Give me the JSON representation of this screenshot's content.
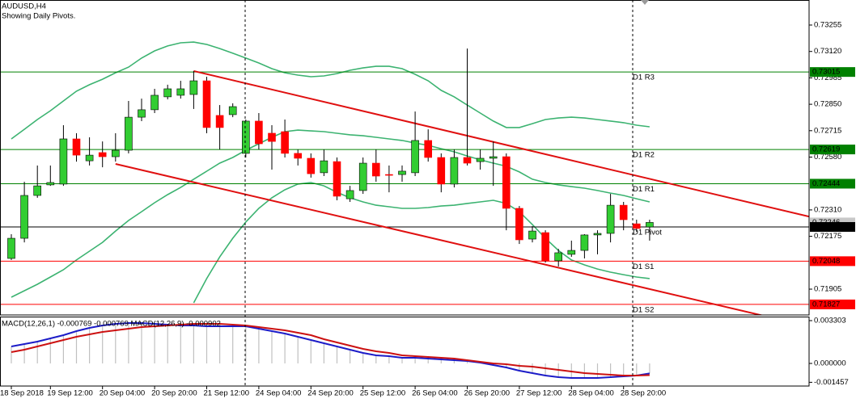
{
  "chart_data": [
    {
      "type": "candlestick",
      "title": "AUDUSD,H4",
      "subtitle": "Showing Daily Pivots.",
      "categories": [
        "18 Sep 2018",
        null,
        null,
        "19 Sep 12:00",
        null,
        null,
        null,
        "20 Sep 04:00",
        null,
        null,
        null,
        "20 Sep 20:00",
        null,
        null,
        null,
        "21 Sep 12:00",
        null,
        null,
        null,
        "24 Sep 04:00",
        null,
        null,
        null,
        "24 Sep 20:00",
        null,
        null,
        null,
        "25 Sep 12:00",
        null,
        null,
        null,
        "26 Sep 04:00",
        null,
        null,
        null,
        "26 Sep 20:00",
        null,
        null,
        null,
        "27 Sep 12:00",
        null,
        null,
        null,
        "28 Sep 04:00",
        null,
        null,
        null,
        "28 Sep 20:00",
        null,
        null
      ],
      "open": [
        0.72062,
        0.72165,
        0.72384,
        0.72438,
        0.72442,
        0.72673,
        0.72561,
        0.72603,
        0.72582,
        0.72615,
        0.72784,
        0.72822,
        0.72888,
        0.72896,
        0.729,
        0.7297,
        0.72793,
        0.72797,
        0.72599,
        0.72764,
        0.72702,
        0.7271,
        0.72599,
        0.72574,
        0.725,
        0.72557,
        0.72367,
        0.72409,
        0.72549,
        0.72491,
        0.72491,
        0.725,
        0.72665,
        0.72578,
        0.72442,
        0.72578,
        0.72557,
        0.72574,
        0.72582,
        0.72318,
        0.72161,
        0.72194,
        0.7205,
        0.72083,
        0.72103,
        0.72182,
        0.7219,
        0.72334,
        0.72239,
        0.72223
      ],
      "high": [
        0.72186,
        0.72454,
        0.72537,
        0.72537,
        0.72743,
        0.72702,
        0.72681,
        0.7266,
        0.72702,
        0.72867,
        0.72879,
        0.72929,
        0.7295,
        0.7297,
        0.7302,
        0.72991,
        0.72846,
        0.72855,
        0.72772,
        0.72805,
        0.72743,
        0.72772,
        0.72619,
        0.72599,
        0.72619,
        0.72578,
        0.72433,
        0.72578,
        0.72619,
        0.72537,
        0.72537,
        0.72813,
        0.72722,
        0.72599,
        0.72619,
        0.73135,
        0.72619,
        0.7266,
        0.72599,
        0.7233,
        0.72227,
        0.72206,
        0.72111,
        0.72153,
        0.72186,
        0.72206,
        0.72392,
        0.72351,
        0.7226,
        0.7226
      ],
      "low": [
        0.72054,
        0.72144,
        0.72372,
        0.72433,
        0.72433,
        0.72557,
        0.72537,
        0.72528,
        0.72557,
        0.72599,
        0.72764,
        0.72805,
        0.72875,
        0.72879,
        0.72826,
        0.72702,
        0.72619,
        0.72784,
        0.72578,
        0.72619,
        0.72516,
        0.72578,
        0.72537,
        0.72475,
        0.72483,
        0.72359,
        0.72351,
        0.72392,
        0.72454,
        0.724,
        0.72454,
        0.72483,
        0.72557,
        0.724,
        0.72425,
        0.72537,
        0.72516,
        0.72433,
        0.72206,
        0.72136,
        0.72144,
        0.72041,
        0.72021,
        0.7207,
        0.72062,
        0.72083,
        0.72144,
        0.72206,
        0.72198,
        0.72153
      ],
      "close": [
        0.72165,
        0.72384,
        0.72433,
        0.7245,
        0.72673,
        0.7259,
        0.7259,
        0.72582,
        0.72615,
        0.72784,
        0.72822,
        0.72896,
        0.72929,
        0.72929,
        0.7297,
        0.72731,
        0.72731,
        0.72838,
        0.72764,
        0.72648,
        0.7266,
        0.72599,
        0.72574,
        0.72495,
        0.72561,
        0.7238,
        0.72409,
        0.72549,
        0.72483,
        0.72487,
        0.72508,
        0.72665,
        0.72578,
        0.72442,
        0.72578,
        0.72549,
        0.72574,
        0.72582,
        0.72318,
        0.72157,
        0.72202,
        0.7205,
        0.72091,
        0.72103,
        0.72182,
        0.7219,
        0.72334,
        0.7226,
        0.72215,
        0.72246
      ],
      "up_color": "#32cd32",
      "down_color": "#ff0000",
      "ylim": [
        0.71773,
        0.73383
      ],
      "yticks": [
        {
          "value": 0.73255,
          "label": "0.73255"
        },
        {
          "value": 0.7312,
          "label": "0.73120"
        },
        {
          "value": 0.72985,
          "label": "0.72985"
        },
        {
          "value": 0.7285,
          "label": "0.72850"
        },
        {
          "value": 0.72715,
          "label": "0.72715"
        },
        {
          "value": 0.7258,
          "label": "0.72580"
        },
        {
          "value": 0.7231,
          "label": "0.72310"
        },
        {
          "value": 0.72175,
          "label": "0.72175"
        },
        {
          "value": 0.71905,
          "label": "0.71905"
        }
      ],
      "bands": [
        {
          "color": "#3cb371",
          "values": [
            0.72673,
            0.72722,
            0.72772,
            0.72817,
            0.72867,
            0.72917,
            0.7295,
            0.72978,
            0.73011,
            0.7304,
            0.73086,
            0.73123,
            0.73148,
            0.73164,
            0.73168,
            0.73156,
            0.73135,
            0.73111,
            0.73086,
            0.73061,
            0.73032,
            0.73011,
            0.72999,
            0.72991,
            0.72995,
            0.73007,
            0.73024,
            0.73036,
            0.73044,
            0.73044,
            0.73032,
            0.73003,
            0.7297,
            0.72921,
            0.72888,
            0.72846,
            0.72805,
            0.72764,
            0.72731,
            0.72731,
            0.72751,
            0.72772,
            0.7278,
            0.72784,
            0.7278,
            0.72772,
            0.72764,
            0.72756,
            0.72743,
            0.72735
          ]
        },
        {
          "color": "#3cb371",
          "values": [
            0.71864,
            0.71897,
            0.7193,
            0.71967,
            0.72004,
            0.72054,
            0.72099,
            0.72144,
            0.72202,
            0.72256,
            0.72301,
            0.72347,
            0.72388,
            0.72425,
            0.72467,
            0.72508,
            0.72549,
            0.72578,
            0.72615,
            0.72648,
            0.72681,
            0.7271,
            0.72718,
            0.72714,
            0.7271,
            0.72702,
            0.72694,
            0.72689,
            0.72681,
            0.72673,
            0.72665,
            0.72652,
            0.7264,
            0.72623,
            0.72607,
            0.72586,
            0.72566,
            0.72549,
            0.72533,
            0.72504,
            0.72467,
            0.7245,
            0.72438,
            0.72429,
            0.72421,
            0.72409,
            0.72396,
            0.72384,
            0.72367,
            0.72351
          ]
        },
        {
          "color": "#3cb371",
          "values": [
            null,
            null,
            null,
            null,
            null,
            null,
            null,
            null,
            null,
            null,
            null,
            null,
            null,
            null,
            0.71835,
            0.71959,
            0.7207,
            0.72165,
            0.72248,
            0.72318,
            0.72372,
            0.72413,
            0.72442,
            0.7245,
            0.72433,
            0.724,
            0.72372,
            0.72351,
            0.72334,
            0.72326,
            0.72318,
            0.72318,
            0.72322,
            0.7233,
            0.72334,
            0.72343,
            0.72351,
            0.72359,
            0.72343,
            0.72301,
            0.72235,
            0.72165,
            0.72103,
            0.72054,
            0.72029,
            0.72008,
            0.71992,
            0.71979,
            0.71967,
            0.71959
          ]
        }
      ],
      "trendlines": [
        {
          "color": "#e01010",
          "x": [
            14,
            38
          ],
          "values": [
            0.7302,
            0.72642
          ]
        },
        {
          "color": "#e01010",
          "x": [
            8,
            38
          ],
          "values": [
            0.72545,
            0.72077
          ]
        }
      ],
      "pivots": [
        {
          "label": "D1 R3",
          "value": 0.73015,
          "color": "#008000"
        },
        {
          "label": "D1 R2",
          "value": 0.72619,
          "color": "#008000"
        },
        {
          "label": "D1 R1",
          "value": 0.72444,
          "color": "#008000"
        },
        {
          "label": "D1 Pivot",
          "value": 0.72223,
          "color": "#000000"
        },
        {
          "label": "D1 S1",
          "value": 0.72048,
          "color": "#ff0000"
        },
        {
          "label": "D1 S2",
          "value": 0.71827,
          "color": "#ff0000"
        }
      ]
    },
    {
      "type": "macd",
      "title": "MACD(12,26,1) -0.000769 -0.000769 MACD(12,26,9) -0.000902",
      "histogram": {
        "color": "#c0c0c0",
        "line_color": "#1c1cc8",
        "values": [
          0.001309,
          0.001496,
          0.001683,
          0.001932,
          0.002181,
          0.002493,
          0.002742,
          0.002929,
          0.003054,
          0.003116,
          0.003116,
          0.003054,
          0.002991,
          0.002929,
          0.002929,
          0.002867,
          0.002867,
          0.002867,
          0.002867,
          0.00268,
          0.002493,
          0.002306,
          0.002057,
          0.001807,
          0.001558,
          0.001309,
          0.001059,
          0.00081,
          0.000623,
          0.000561,
          0.000436,
          0.000436,
          0.000374,
          0.000312,
          0.000249,
          0.000187,
          6.2e-05,
          -0.000125,
          -0.000312,
          -0.000561,
          -0.000748,
          -0.000935,
          -0.001059,
          -0.001122,
          -0.001122,
          -0.001122,
          -0.001059,
          -0.000997,
          -0.000935,
          -0.000769
        ]
      },
      "signal": {
        "color": "#cc1111",
        "values": [
          0.000872,
          0.001059,
          0.001309,
          0.001558,
          0.001807,
          0.002057,
          0.002244,
          0.00243,
          0.002555,
          0.00268,
          0.002804,
          0.002867,
          0.002929,
          0.002991,
          0.003054,
          0.003054,
          0.003054,
          0.002991,
          0.002929,
          0.002804,
          0.00268,
          0.002555,
          0.002368,
          0.002181,
          0.00187,
          0.00162,
          0.001371,
          0.001122,
          0.000935,
          0.00081,
          0.000623,
          0.000561,
          0.000499,
          0.000436,
          0.000374,
          0.000249,
          0.000125,
          0,
          -6.2e-05,
          -0.000187,
          -0.000249,
          -0.000374,
          -0.000499,
          -0.000623,
          -0.000748,
          -0.00081,
          -0.000872,
          -0.000935,
          -0.000935,
          -0.000902
        ]
      },
      "ylim": [
        -0.001745,
        0.003615
      ],
      "yticks": [
        {
          "value": 0.003303,
          "label": "0.003303"
        },
        {
          "value": 0,
          "label": "0.000000"
        },
        {
          "value": -0.001457,
          "label": "-0.001457"
        }
      ]
    }
  ]
}
